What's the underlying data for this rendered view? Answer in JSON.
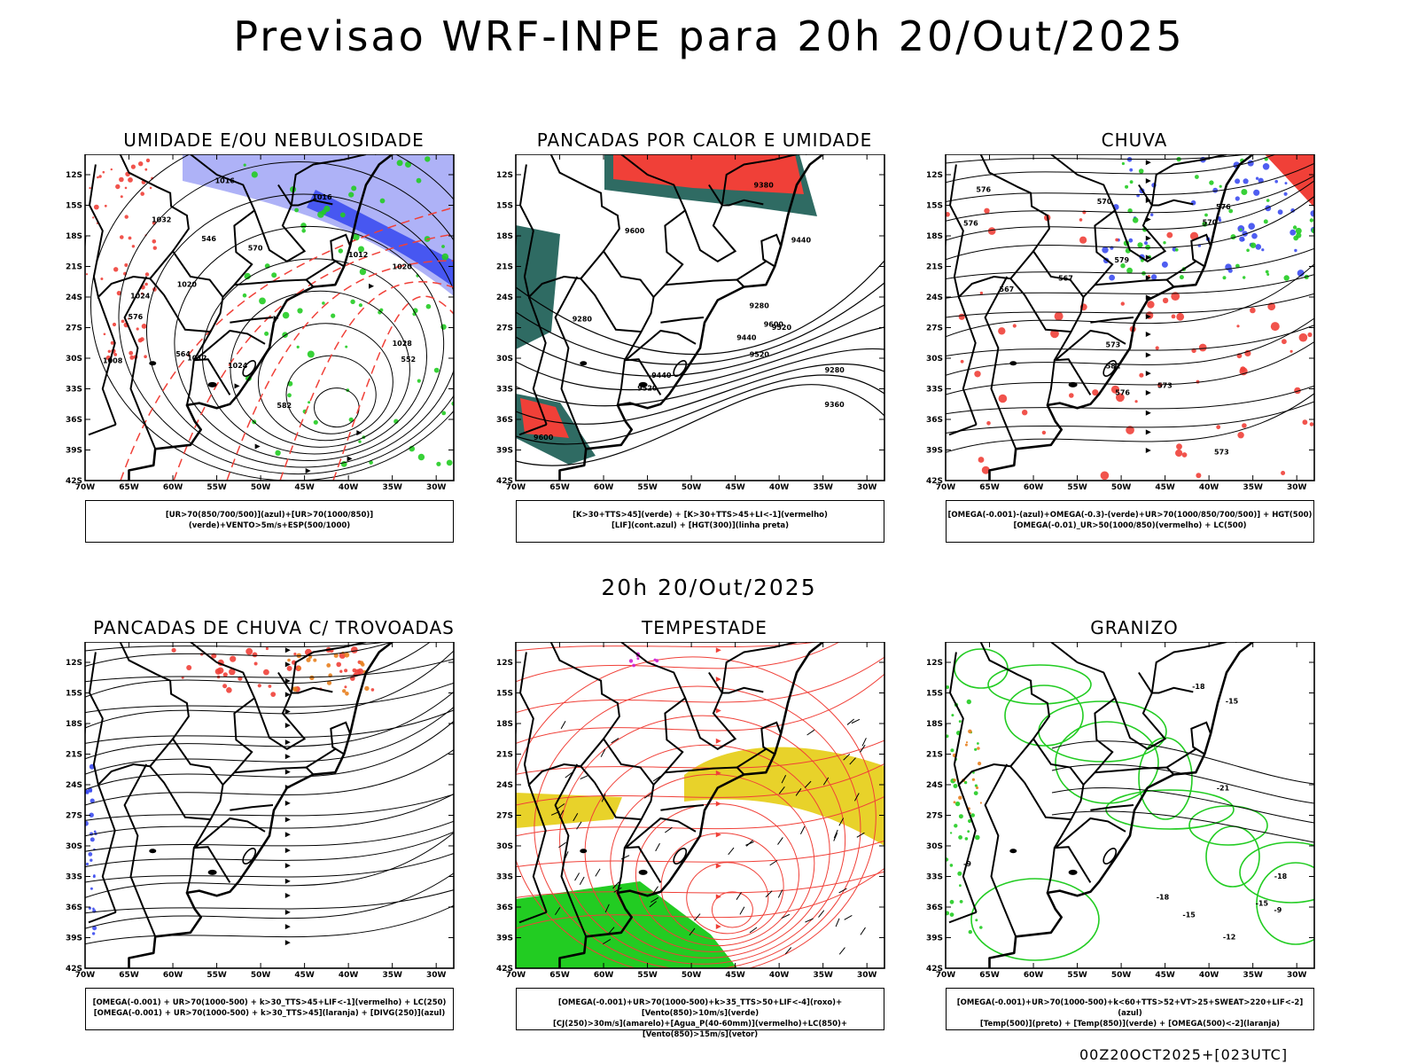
{
  "main_title": "Previsao WRF-INPE  para 20h 20/Out/2025",
  "mid_title": "20h 20/Out/2025",
  "footer": "00Z20OCT2025+[023UTC]",
  "colors": {
    "blue": "#3c4cf0",
    "light_blue": "#9a9ff5",
    "green": "#22cc22",
    "red": "#f04038",
    "orange": "#e8801e",
    "yellow": "#e8d22a",
    "teal": "#2f6b63",
    "black": "#000000"
  },
  "axes": {
    "lat_ticks": [
      "12S",
      "15S",
      "18S",
      "21S",
      "24S",
      "27S",
      "30S",
      "33S",
      "36S",
      "39S",
      "42S"
    ],
    "lon_ticks": [
      "70W",
      "65W",
      "60W",
      "55W",
      "50W",
      "45W",
      "40W",
      "35W",
      "30W"
    ]
  },
  "chart_data": [
    {
      "type": "map",
      "title": "UMIDADE E/OU NEBULOSIDADE",
      "xlim": [
        -70,
        -28
      ],
      "ylim": [
        -42,
        -10
      ],
      "legend": [
        "[UR>70(850/700/500)](azul)+[UR>70(1000/850)](verde)+VENTO>5m/s+ESP(500/1000)"
      ],
      "contour_labels": [
        "1008",
        "1012",
        "1016",
        "1020",
        "1024",
        "1028",
        "1032",
        "1012",
        "1016",
        "1020",
        "1024",
        "552",
        "564",
        "570",
        "576",
        "582",
        "546"
      ]
    },
    {
      "type": "map",
      "title": "PANCADAS POR CALOR E UMIDADE",
      "xlim": [
        -70,
        -28
      ],
      "ylim": [
        -42,
        -10
      ],
      "legend": [
        "[K>30+TTS>45](verde) + [K>30+TTS>45+LI<-1](vermelho)",
        "[LIF](cont.azul) + [HGT(300)](linha preta)"
      ],
      "contour_labels": [
        "9600",
        "9600",
        "9600",
        "9520",
        "9520",
        "9520",
        "9440",
        "9440",
        "9380",
        "9280",
        "9360",
        "9280",
        "9280",
        "9440"
      ]
    },
    {
      "type": "map",
      "title": "CHUVA",
      "xlim": [
        -70,
        -28
      ],
      "ylim": [
        -42,
        -10
      ],
      "legend": [
        "[OMEGA(-0.001)-(azul)+OMEGA(-0.3)-(verde)+UR>70(1000/850/700/500)] + HGT(500)",
        "[OMEGA(-0.01)_UR>50(1000/850)(vermelho) + LC(500)"
      ],
      "contour_labels": [
        "576",
        "576",
        "573",
        "570",
        "567",
        "582",
        "579",
        "576",
        "576",
        "573",
        "570",
        "567",
        "573"
      ]
    },
    {
      "type": "map",
      "title": "PANCADAS DE CHUVA C/ TROVOADAS",
      "xlim": [
        -70,
        -28
      ],
      "ylim": [
        -42,
        -10
      ],
      "legend": [
        "[OMEGA(-0.001) + UR>70(1000-500) + k>30_TTS>45+LIF<-1](vermelho) + LC(250)",
        "[OMEGA(-0.001) + UR>70(1000-500) + k>30_TTS>45](laranja) + [DIVG(250)](azul)"
      ]
    },
    {
      "type": "map",
      "title": "TEMPESTADE",
      "xlim": [
        -70,
        -28
      ],
      "ylim": [
        -42,
        -10
      ],
      "legend": [
        "[OMEGA(-0.001)+UR>70(1000-500)+k>35_TTS>50+LIF<-4](roxo)+[Vento(850)>10m/s](verde)",
        "[CJ(250)>30m/s](amarelo)+[Agua_P(40-60mm)](vermelho)+LC(850)+[Vento(850)>15m/s](vetor)"
      ]
    },
    {
      "type": "map",
      "title": "GRANIZO",
      "xlim": [
        -70,
        -28
      ],
      "ylim": [
        -42,
        -10
      ],
      "legend": [
        "[OMEGA(-0.001)+UR>70(1000-500)+k<60+TTS>52+VT>25+SWEAT>220+LIF<-2](azul)",
        "[Temp(500)](preto) + [Temp(850)](verde) + [OMEGA(500)<-2](laranja)"
      ],
      "contour_labels": [
        "-9",
        "-12",
        "-15",
        "-18",
        "-15",
        "-18",
        "-21",
        "-15",
        "-18",
        "-9"
      ]
    }
  ]
}
